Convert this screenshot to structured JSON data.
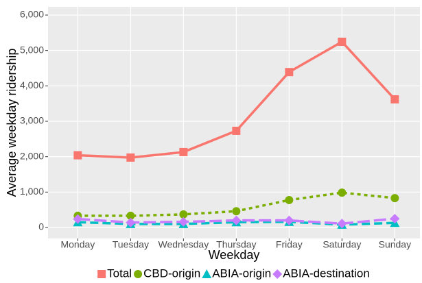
{
  "chart_data": {
    "type": "line",
    "x_label": "Weekday",
    "y_label": "Average weekday ridership",
    "categories": [
      "Monday",
      "Tuesday",
      "Wednesday",
      "Thursday",
      "Friday",
      "Saturday",
      "Sunday"
    ],
    "series": [
      {
        "name": "Total",
        "color": "#F8766D",
        "marker": "square",
        "line_style": "solid",
        "values": [
          2040,
          1975,
          2130,
          2730,
          4390,
          5245,
          3620
        ]
      },
      {
        "name": "CBD-origin",
        "color": "#7CAE00",
        "marker": "circle",
        "line_style": "dotted",
        "values": [
          330,
          330,
          370,
          460,
          775,
          985,
          830
        ]
      },
      {
        "name": "ABIA-origin",
        "color": "#00BFC4",
        "marker": "triangle",
        "line_style": "dashed",
        "values": [
          150,
          100,
          100,
          150,
          160,
          80,
          130
        ]
      },
      {
        "name": "ABIA-destination",
        "color": "#C77CFF",
        "marker": "diamond",
        "line_style": "longdash",
        "values": [
          240,
          140,
          160,
          200,
          200,
          110,
          250
        ]
      }
    ],
    "ylim": [
      -310,
      6232
    ],
    "yticks": [
      0,
      {
        "value": 1000,
        "label": "1,000"
      },
      {
        "value": 2000,
        "label": "2,000"
      },
      {
        "value": 3000,
        "label": "3,000"
      },
      {
        "value": 4000,
        "label": "4,000"
      },
      {
        "value": 5000,
        "label": "5,000"
      },
      {
        "value": 6000,
        "label": "6,000"
      }
    ],
    "grid": true,
    "legend": "bottom"
  }
}
